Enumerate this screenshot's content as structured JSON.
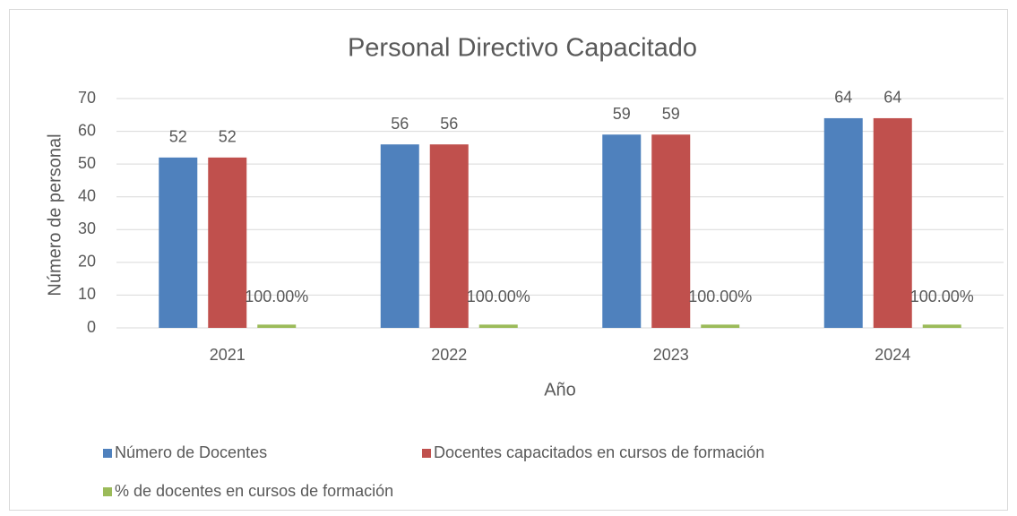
{
  "chart_data": {
    "type": "bar",
    "title": "Personal Directivo Capacitado",
    "x_label": "Año",
    "y_label": "Número de personal",
    "categories": [
      "2021",
      "2022",
      "2023",
      "2024"
    ],
    "series": [
      {
        "name": "Número de Docentes",
        "color": "#4f81bd",
        "values": [
          52,
          56,
          59,
          64
        ]
      },
      {
        "name": "Docentes capacitados en cursos de formación",
        "color": "#c0504d",
        "values": [
          52,
          56,
          59,
          64
        ]
      },
      {
        "name": "% de docentes en cursos de formación",
        "color": "#9bbb59",
        "values": [
          1,
          1,
          1,
          1
        ],
        "value_labels": [
          "100.00%",
          "100.00%",
          "100.00%",
          "100.00%"
        ]
      }
    ],
    "ylim": [
      0,
      70
    ],
    "yticks": [
      0,
      10,
      20,
      30,
      40,
      50,
      60,
      70
    ],
    "grid": true,
    "legend": "bottom"
  }
}
